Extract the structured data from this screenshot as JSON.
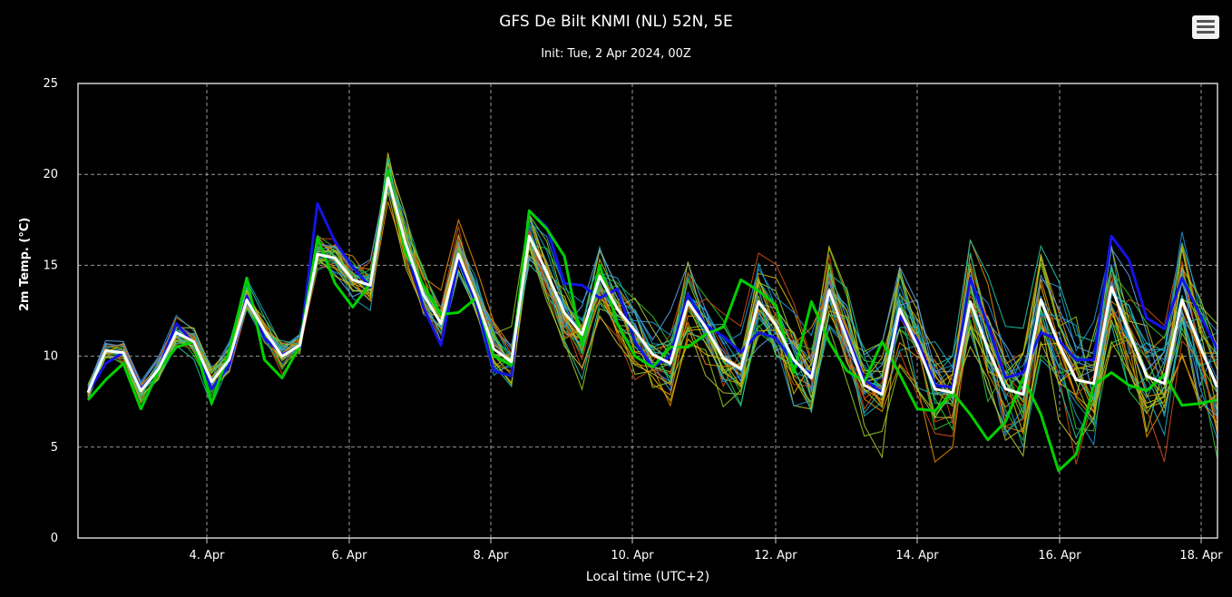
{
  "chart_data": {
    "type": "line",
    "title": "GFS De Bilt KNMI (NL) 52N, 5E",
    "subtitle": "Init: Tue, 2 Apr 2024, 00Z",
    "xlabel": "Local time (UTC+2)",
    "ylabel": "2m Temp. (°C)",
    "ylim": [
      0,
      25
    ],
    "yticks": [
      0,
      5,
      10,
      15,
      20,
      25
    ],
    "xticks": [
      "4. Apr",
      "6. Apr",
      "8. Apr",
      "10. Apr",
      "12. Apr",
      "14. Apr",
      "16. Apr",
      "18. Apr"
    ],
    "grid": true,
    "x_start": "2024-04-02 12:00",
    "x_step_hours": 6,
    "series": [
      {
        "name": "",
        "color": "#ffffff",
        "width": 3,
        "values": [
          8.0,
          10.3,
          10.2,
          8.1,
          9.3,
          11.3,
          10.8,
          8.6,
          9.8,
          13.1,
          11.4,
          10.0,
          10.6,
          15.6,
          15.4,
          14.2,
          13.9,
          19.8,
          16.2,
          13.4,
          11.8,
          15.6,
          13.2,
          10.4,
          9.7,
          16.6,
          14.6,
          12.4,
          11.2,
          14.4,
          12.6,
          11.4,
          10.1,
          9.6,
          13.0,
          11.6,
          9.9,
          9.3,
          13.0,
          11.7,
          9.8,
          8.8,
          13.6,
          11.0,
          8.4,
          7.9,
          12.6,
          10.6,
          8.2,
          8.0,
          13.0,
          10.4,
          8.2,
          7.9,
          13.1,
          10.7,
          8.7,
          8.5,
          13.8,
          11.3,
          8.9,
          8.5,
          13.1,
          10.6,
          8.3
        ]
      },
      {
        "name": "",
        "color": "#00d000",
        "width": 3,
        "values": [
          7.6,
          8.7,
          9.6,
          7.1,
          9.2,
          10.5,
          10.8,
          7.4,
          10.3,
          14.3,
          9.8,
          8.8,
          10.6,
          16.5,
          14.0,
          12.7,
          14.0,
          20.2,
          15.7,
          13.9,
          12.3,
          12.4,
          13.2,
          10.0,
          9.5,
          18.0,
          17.0,
          15.5,
          10.6,
          15.0,
          11.8,
          10.0,
          9.4,
          10.5,
          10.5,
          11.2,
          11.6,
          14.2,
          13.6,
          12.8,
          9.1,
          13.0,
          10.8,
          9.2,
          8.6,
          10.8,
          9.0,
          7.1,
          7.0,
          8.0,
          6.8,
          5.4,
          6.4,
          8.8,
          6.8,
          3.7,
          4.6,
          8.4,
          9.1,
          8.4,
          8.1,
          9.0,
          7.3,
          7.4,
          7.6
        ]
      },
      {
        "name": "",
        "color": "#1414e6",
        "width": 3,
        "values": [
          8.0,
          9.6,
          10.2,
          8.2,
          9.3,
          11.8,
          10.7,
          8.2,
          9.5,
          13.3,
          11.0,
          10.1,
          10.5,
          18.4,
          16.3,
          14.9,
          13.8,
          20.0,
          16.0,
          12.7,
          10.6,
          15.3,
          12.9,
          9.2,
          8.9,
          18.0,
          17.1,
          14.0,
          13.9,
          13.2,
          13.7,
          10.8,
          9.4,
          10.0,
          13.4,
          11.7,
          11.1,
          10.2,
          11.3,
          11.0,
          9.6,
          9.0,
          13.5,
          11.2,
          8.7,
          8.0,
          12.2,
          10.9,
          8.4,
          8.3,
          14.3,
          11.7,
          8.8,
          9.1,
          11.3,
          10.9,
          9.8,
          9.8,
          16.6,
          15.3,
          12.1,
          11.5,
          14.3,
          12.3,
          10.4
        ]
      }
    ],
    "member_colors": [
      "#1e90d0",
      "#19a7b8",
      "#2ebd2e",
      "#8fc21f",
      "#d4b400",
      "#e08a00",
      "#c84a14",
      "#5a9be0",
      "#20c0a0",
      "#b0c030"
    ]
  },
  "ui": {
    "menu_icon": "hamburger-icon"
  }
}
